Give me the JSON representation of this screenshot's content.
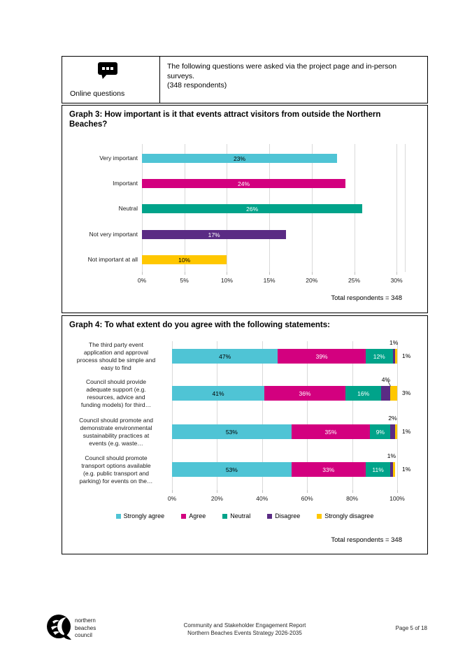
{
  "header": {
    "icon": "chat-bubble-icon",
    "label": "Online questions",
    "text": "The following questions were asked via the project page and in-person surveys.",
    "respondents": "(348 respondents)"
  },
  "graph3": {
    "title": "Graph 3: How important is it that events attract visitors from outside the Northern Beaches?",
    "total": "Total respondents = 348",
    "chart_data": {
      "type": "bar",
      "orientation": "horizontal",
      "categories": [
        "Very important",
        "Important",
        "Neutral",
        "Not very important",
        "Not important at all"
      ],
      "values": [
        23,
        24,
        26,
        17,
        10
      ],
      "value_labels": [
        "23%",
        "24%",
        "26%",
        "17%",
        "10%"
      ],
      "bar_colors": [
        "#4FC4D5",
        "#D3007F",
        "#00A38A",
        "#5A2B84",
        "#FFC700"
      ],
      "value_label_colors": [
        "#000000",
        "#ffffff",
        "#ffffff",
        "#ffffff",
        "#000000"
      ],
      "x_ticks": [
        "0%",
        "5%",
        "10%",
        "15%",
        "20%",
        "25%",
        "30%"
      ],
      "xlim": [
        0,
        30
      ],
      "grid": "on"
    }
  },
  "graph4": {
    "title": "Graph 4: To what extent do you agree with the following statements:",
    "total": "Total respondents = 348",
    "chart_data": {
      "type": "stacked-bar",
      "orientation": "horizontal",
      "categories": [
        [
          "The third party event",
          "application and approval",
          "process should be simple and",
          "easy to find"
        ],
        [
          "Council should provide",
          "adequate support (e.g.",
          "resources, advice and",
          "funding models) for third…"
        ],
        [
          "Council should promote and",
          "demonstrate environmental",
          "sustainability practices at",
          "events (e.g. waste…"
        ],
        [
          "Council should promote",
          "transport options available",
          "(e.g. public transport and",
          "parking) for events on the…"
        ]
      ],
      "series": [
        {
          "name": "Strongly agree",
          "color": "#4FC4D5",
          "label_color": "#000000",
          "values": [
            47,
            41,
            53,
            53
          ]
        },
        {
          "name": "Agree",
          "color": "#D3007F",
          "label_color": "#ffffff",
          "values": [
            39,
            36,
            35,
            33
          ]
        },
        {
          "name": "Neutral",
          "color": "#00A38A",
          "label_color": "#ffffff",
          "values": [
            12,
            16,
            9,
            11
          ]
        },
        {
          "name": "Disagree",
          "color": "#5A2B84",
          "label_color": "#ffffff",
          "values": [
            1,
            4,
            2,
            1
          ]
        },
        {
          "name": "Strongly disagree",
          "color": "#FFC700",
          "label_color": "#000000",
          "values": [
            1,
            3,
            1,
            1
          ]
        }
      ],
      "disagree_callout_labels": [
        "1%",
        "4%",
        "2%",
        "1%"
      ],
      "strongly_disagree_right_labels": [
        "1%",
        "3%",
        "1%",
        "1%"
      ],
      "x_ticks": [
        "0%",
        "20%",
        "40%",
        "60%",
        "80%",
        "100%"
      ],
      "xlim": [
        0,
        100
      ],
      "grid": "on",
      "legend_position": "bottom"
    }
  },
  "footer": {
    "logo": "northern-beaches-council-logo",
    "logo_text_lines": [
      "northern",
      "beaches",
      "council"
    ],
    "center_line1": "Community and Stakeholder Engagement Report",
    "center_line2": "Northern Beaches Events Strategy 2026-2035",
    "page_label": "Page 5 of 18"
  }
}
